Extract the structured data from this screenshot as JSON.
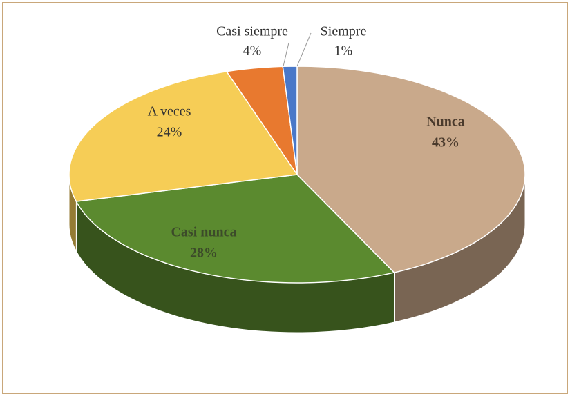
{
  "chart_data": {
    "type": "pie",
    "categories": [
      "Nunca",
      "Casi nunca",
      "A veces",
      "Casi siempre",
      "Siempre"
    ],
    "values": [
      43,
      28,
      24,
      4,
      1
    ],
    "value_labels": [
      "43%",
      "28%",
      "24%",
      "4%",
      "1%"
    ],
    "colors": [
      "#c9a98b",
      "#5b8a2f",
      "#f6cd56",
      "#e8792f",
      "#4a78c8"
    ]
  }
}
